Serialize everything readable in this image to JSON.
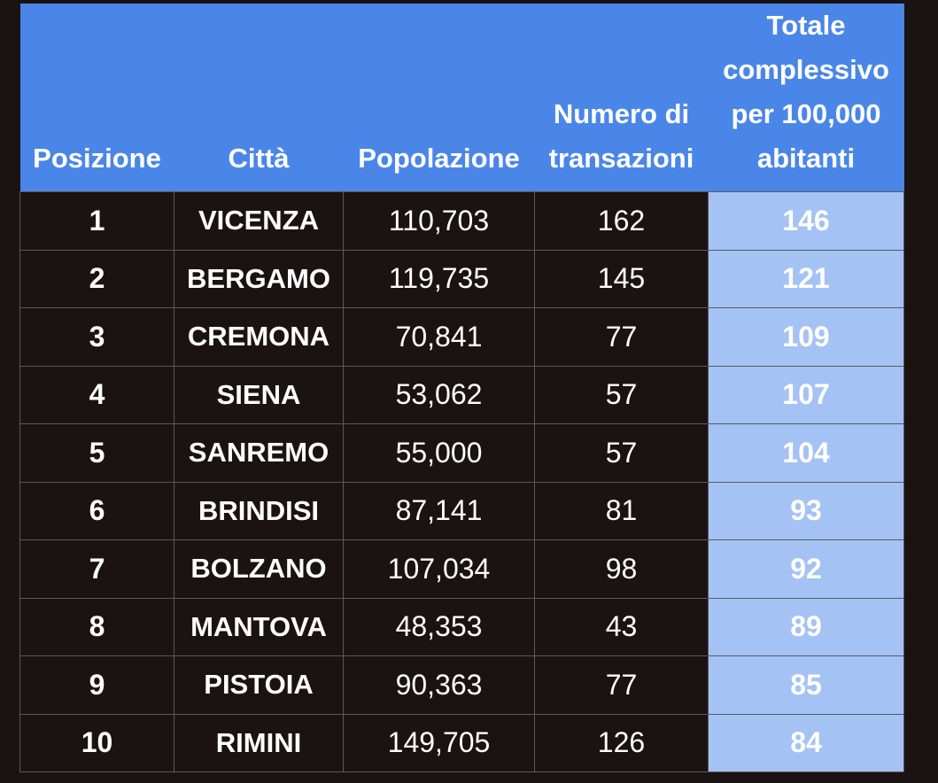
{
  "table": {
    "headers": {
      "position": "Posizione",
      "city": "Città",
      "population": "Popolazione",
      "transactions": "Numero di transazioni",
      "total": "Totale complessivo per 100,000 abitanti"
    },
    "rows": [
      {
        "position": "1",
        "city": "VICENZA",
        "population": "110,703",
        "transactions": "162",
        "total": "146"
      },
      {
        "position": "2",
        "city": "BERGAMO",
        "population": "119,735",
        "transactions": "145",
        "total": "121"
      },
      {
        "position": "3",
        "city": "CREMONA",
        "population": "70,841",
        "transactions": "77",
        "total": "109"
      },
      {
        "position": "4",
        "city": "SIENA",
        "population": "53,062",
        "transactions": "57",
        "total": "107"
      },
      {
        "position": "5",
        "city": "SANREMO",
        "population": "55,000",
        "transactions": "57",
        "total": "104"
      },
      {
        "position": "6",
        "city": "BRINDISI",
        "population": "87,141",
        "transactions": "81",
        "total": "93"
      },
      {
        "position": "7",
        "city": "BOLZANO",
        "population": "107,034",
        "transactions": "98",
        "total": "92"
      },
      {
        "position": "8",
        "city": "MANTOVA",
        "population": "48,353",
        "transactions": "43",
        "total": "89"
      },
      {
        "position": "9",
        "city": "PISTOIA",
        "population": "90,363",
        "transactions": "77",
        "total": "85"
      },
      {
        "position": "10",
        "city": "RIMINI",
        "population": "149,705",
        "transactions": "126",
        "total": "84"
      }
    ]
  },
  "colors": {
    "header_bg": "#4a86e8",
    "highlight_bg": "#a4c2f4",
    "body_bg": "#1a1311"
  }
}
